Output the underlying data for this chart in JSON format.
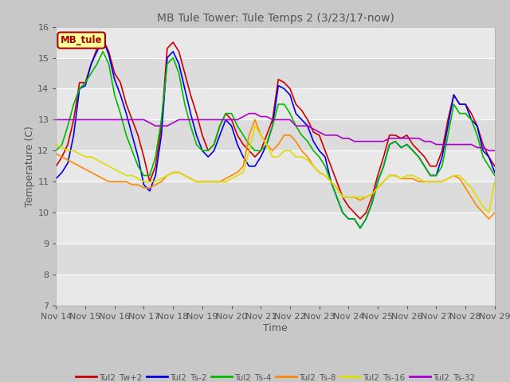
{
  "title": "MB Tule Tower: Tule Temps 2 (3/23/17-now)",
  "xlabel": "Time",
  "ylabel": "Temperature (C)",
  "ylim": [
    7.0,
    16.0
  ],
  "yticks": [
    7.0,
    8.0,
    9.0,
    10.0,
    11.0,
    12.0,
    13.0,
    14.0,
    15.0,
    16.0
  ],
  "legend_box_label": "MB_tule",
  "legend_box_color": "#ffff99",
  "legend_box_border": "#aa0000",
  "series": [
    {
      "label": "Tul2_Tw+2",
      "color": "#cc0000",
      "lw": 1.2,
      "x": [
        0,
        0.2,
        0.4,
        0.6,
        0.8,
        1.0,
        1.2,
        1.4,
        1.6,
        1.8,
        2.0,
        2.2,
        2.4,
        2.6,
        2.8,
        3.0,
        3.2,
        3.4,
        3.6,
        3.8,
        4.0,
        4.2,
        4.4,
        4.6,
        4.8,
        5.0,
        5.2,
        5.4,
        5.6,
        5.8,
        6.0,
        6.2,
        6.4,
        6.6,
        6.8,
        7.0,
        7.2,
        7.4,
        7.6,
        7.8,
        8.0,
        8.2,
        8.4,
        8.6,
        8.8,
        9.0,
        9.2,
        9.4,
        9.6,
        9.8,
        10.0,
        10.2,
        10.4,
        10.6,
        10.8,
        11.0,
        11.2,
        11.4,
        11.6,
        11.8,
        12.0,
        12.2,
        12.4,
        12.6,
        12.8,
        13.0,
        13.2,
        13.4,
        13.6,
        13.8,
        14.0,
        14.2,
        14.4,
        14.6,
        14.8,
        15.0
      ],
      "y": [
        11.5,
        11.8,
        12.2,
        13.0,
        14.2,
        14.2,
        14.8,
        15.3,
        15.6,
        15.2,
        14.5,
        14.2,
        13.5,
        13.0,
        12.5,
        11.8,
        11.0,
        11.5,
        12.8,
        15.3,
        15.5,
        15.2,
        14.5,
        13.8,
        13.2,
        12.5,
        12.0,
        12.2,
        12.8,
        13.2,
        13.0,
        12.5,
        12.2,
        12.0,
        11.8,
        12.0,
        12.5,
        13.0,
        14.3,
        14.2,
        14.0,
        13.5,
        13.3,
        13.0,
        12.6,
        12.5,
        12.0,
        11.5,
        11.0,
        10.5,
        10.2,
        10.0,
        9.8,
        10.0,
        10.5,
        11.2,
        11.8,
        12.5,
        12.5,
        12.4,
        12.5,
        12.2,
        12.0,
        11.8,
        11.5,
        11.5,
        12.0,
        13.0,
        13.8,
        13.5,
        13.5,
        13.2,
        12.8,
        12.2,
        11.8,
        11.5
      ]
    },
    {
      "label": "Tul2_Ts-2",
      "color": "#0000ee",
      "lw": 1.2,
      "x": [
        0,
        0.2,
        0.4,
        0.6,
        0.8,
        1.0,
        1.2,
        1.4,
        1.6,
        1.8,
        2.0,
        2.2,
        2.4,
        2.6,
        2.8,
        3.0,
        3.2,
        3.4,
        3.6,
        3.8,
        4.0,
        4.2,
        4.4,
        4.6,
        4.8,
        5.0,
        5.2,
        5.4,
        5.6,
        5.8,
        6.0,
        6.2,
        6.4,
        6.6,
        6.8,
        7.0,
        7.2,
        7.4,
        7.6,
        7.8,
        8.0,
        8.2,
        8.4,
        8.6,
        8.8,
        9.0,
        9.2,
        9.4,
        9.6,
        9.8,
        10.0,
        10.2,
        10.4,
        10.6,
        10.8,
        11.0,
        11.2,
        11.4,
        11.6,
        11.8,
        12.0,
        12.2,
        12.4,
        12.6,
        12.8,
        13.0,
        13.2,
        13.4,
        13.6,
        13.8,
        14.0,
        14.2,
        14.4,
        14.6,
        14.8,
        15.0
      ],
      "y": [
        11.1,
        11.3,
        11.6,
        12.5,
        14.0,
        14.1,
        14.8,
        15.2,
        15.6,
        15.1,
        14.3,
        13.8,
        13.2,
        12.5,
        11.8,
        10.9,
        10.7,
        11.2,
        12.5,
        15.0,
        15.2,
        14.8,
        14.0,
        13.2,
        12.5,
        12.0,
        11.8,
        12.0,
        12.5,
        13.0,
        12.8,
        12.2,
        11.8,
        11.5,
        11.5,
        11.8,
        12.2,
        12.8,
        14.1,
        14.0,
        13.8,
        13.2,
        13.0,
        12.8,
        12.3,
        12.0,
        11.8,
        11.0,
        10.5,
        10.0,
        9.8,
        9.8,
        9.5,
        9.8,
        10.3,
        11.0,
        11.5,
        12.2,
        12.3,
        12.1,
        12.2,
        12.0,
        11.8,
        11.5,
        11.2,
        11.2,
        11.8,
        12.8,
        13.8,
        13.5,
        13.5,
        13.0,
        12.8,
        12.0,
        11.8,
        11.3
      ]
    },
    {
      "label": "Tul2_Ts-4",
      "color": "#00bb00",
      "lw": 1.2,
      "x": [
        0,
        0.2,
        0.4,
        0.6,
        0.8,
        1.0,
        1.2,
        1.4,
        1.6,
        1.8,
        2.0,
        2.2,
        2.4,
        2.6,
        2.8,
        3.0,
        3.2,
        3.4,
        3.6,
        3.8,
        4.0,
        4.2,
        4.4,
        4.6,
        4.8,
        5.0,
        5.2,
        5.4,
        5.6,
        5.8,
        6.0,
        6.2,
        6.4,
        6.6,
        6.8,
        7.0,
        7.2,
        7.4,
        7.6,
        7.8,
        8.0,
        8.2,
        8.4,
        8.6,
        8.8,
        9.0,
        9.2,
        9.4,
        9.6,
        9.8,
        10.0,
        10.2,
        10.4,
        10.6,
        10.8,
        11.0,
        11.2,
        11.4,
        11.6,
        11.8,
        12.0,
        12.2,
        12.4,
        12.6,
        12.8,
        13.0,
        13.2,
        13.4,
        13.6,
        13.8,
        14.0,
        14.2,
        14.4,
        14.6,
        14.8,
        15.0
      ],
      "y": [
        12.0,
        12.2,
        12.8,
        13.5,
        14.0,
        14.2,
        14.5,
        14.8,
        15.2,
        14.8,
        13.8,
        13.2,
        12.5,
        12.0,
        11.5,
        11.2,
        11.2,
        11.8,
        13.0,
        14.8,
        15.0,
        14.5,
        13.5,
        12.8,
        12.2,
        12.0,
        12.0,
        12.2,
        12.8,
        13.2,
        13.2,
        12.8,
        12.5,
        12.2,
        12.0,
        12.0,
        12.2,
        12.8,
        13.5,
        13.5,
        13.2,
        12.8,
        12.5,
        12.3,
        12.0,
        11.8,
        11.5,
        11.0,
        10.5,
        10.0,
        9.8,
        9.8,
        9.5,
        9.8,
        10.3,
        11.0,
        11.5,
        12.2,
        12.3,
        12.1,
        12.2,
        12.0,
        11.8,
        11.5,
        11.2,
        11.2,
        11.5,
        12.5,
        13.5,
        13.2,
        13.2,
        13.0,
        12.5,
        11.8,
        11.5,
        11.2
      ]
    },
    {
      "label": "Tul2_Ts-8",
      "color": "#ff8800",
      "lw": 1.2,
      "x": [
        0,
        0.2,
        0.4,
        0.6,
        0.8,
        1.0,
        1.2,
        1.4,
        1.6,
        1.8,
        2.0,
        2.2,
        2.4,
        2.6,
        2.8,
        3.0,
        3.2,
        3.4,
        3.6,
        3.8,
        4.0,
        4.2,
        4.4,
        4.6,
        4.8,
        5.0,
        5.2,
        5.4,
        5.6,
        5.8,
        6.0,
        6.2,
        6.4,
        6.6,
        6.8,
        7.0,
        7.2,
        7.4,
        7.6,
        7.8,
        8.0,
        8.2,
        8.4,
        8.6,
        8.8,
        9.0,
        9.2,
        9.4,
        9.6,
        9.8,
        10.0,
        10.2,
        10.4,
        10.6,
        10.8,
        11.0,
        11.2,
        11.4,
        11.6,
        11.8,
        12.0,
        12.2,
        12.4,
        12.6,
        12.8,
        13.0,
        13.2,
        13.4,
        13.6,
        13.8,
        14.0,
        14.2,
        14.4,
        14.6,
        14.8,
        15.0
      ],
      "y": [
        11.9,
        11.8,
        11.7,
        11.6,
        11.5,
        11.4,
        11.3,
        11.2,
        11.1,
        11.0,
        11.0,
        11.0,
        11.0,
        10.9,
        10.9,
        10.8,
        10.8,
        10.9,
        11.0,
        11.2,
        11.3,
        11.3,
        11.2,
        11.1,
        11.0,
        11.0,
        11.0,
        11.0,
        11.0,
        11.1,
        11.2,
        11.3,
        11.5,
        12.5,
        13.0,
        12.5,
        12.2,
        12.0,
        12.2,
        12.5,
        12.5,
        12.3,
        12.0,
        11.8,
        11.5,
        11.3,
        11.2,
        11.0,
        10.8,
        10.5,
        10.5,
        10.5,
        10.4,
        10.5,
        10.6,
        10.8,
        11.0,
        11.2,
        11.2,
        11.1,
        11.1,
        11.1,
        11.0,
        11.0,
        11.0,
        11.0,
        11.0,
        11.1,
        11.2,
        11.1,
        10.8,
        10.5,
        10.2,
        10.0,
        9.8,
        10.0
      ]
    },
    {
      "label": "Tul2_Ts-16",
      "color": "#dddd00",
      "lw": 1.2,
      "x": [
        0,
        0.2,
        0.4,
        0.6,
        0.8,
        1.0,
        1.2,
        1.4,
        1.6,
        1.8,
        2.0,
        2.2,
        2.4,
        2.6,
        2.8,
        3.0,
        3.2,
        3.4,
        3.6,
        3.8,
        4.0,
        4.2,
        4.4,
        4.6,
        4.8,
        5.0,
        5.2,
        5.4,
        5.6,
        5.8,
        6.0,
        6.2,
        6.4,
        6.6,
        6.8,
        7.0,
        7.2,
        7.4,
        7.6,
        7.8,
        8.0,
        8.2,
        8.4,
        8.6,
        8.8,
        9.0,
        9.2,
        9.4,
        9.6,
        9.8,
        10.0,
        10.2,
        10.4,
        10.6,
        10.8,
        11.0,
        11.2,
        11.4,
        11.6,
        11.8,
        12.0,
        12.2,
        12.4,
        12.6,
        12.8,
        13.0,
        13.2,
        13.4,
        13.6,
        13.8,
        14.0,
        14.2,
        14.4,
        14.6,
        14.8,
        15.0
      ],
      "y": [
        12.2,
        12.1,
        12.0,
        12.0,
        11.9,
        11.8,
        11.8,
        11.7,
        11.6,
        11.5,
        11.4,
        11.3,
        11.2,
        11.2,
        11.1,
        11.0,
        11.0,
        11.0,
        11.1,
        11.2,
        11.3,
        11.3,
        11.2,
        11.1,
        11.0,
        11.0,
        11.0,
        11.0,
        11.0,
        11.0,
        11.1,
        11.2,
        11.3,
        12.0,
        12.8,
        12.5,
        12.2,
        11.8,
        11.8,
        12.0,
        12.0,
        11.8,
        11.8,
        11.7,
        11.5,
        11.3,
        11.2,
        11.0,
        10.8,
        10.5,
        10.5,
        10.5,
        10.5,
        10.5,
        10.6,
        10.8,
        11.0,
        11.2,
        11.2,
        11.1,
        11.2,
        11.2,
        11.1,
        11.0,
        11.0,
        11.0,
        11.0,
        11.1,
        11.2,
        11.2,
        11.0,
        10.8,
        10.5,
        10.2,
        10.0,
        11.0
      ]
    },
    {
      "label": "Tul2_Ts-32",
      "color": "#aa00cc",
      "lw": 1.2,
      "x": [
        0,
        0.2,
        0.4,
        0.6,
        0.8,
        1.0,
        1.2,
        1.4,
        1.6,
        1.8,
        2.0,
        2.2,
        2.4,
        2.6,
        2.8,
        3.0,
        3.2,
        3.4,
        3.6,
        3.8,
        4.0,
        4.2,
        4.4,
        4.6,
        4.8,
        5.0,
        5.2,
        5.4,
        5.6,
        5.8,
        6.0,
        6.2,
        6.4,
        6.6,
        6.8,
        7.0,
        7.2,
        7.4,
        7.6,
        7.8,
        8.0,
        8.2,
        8.4,
        8.6,
        8.8,
        9.0,
        9.2,
        9.4,
        9.6,
        9.8,
        10.0,
        10.2,
        10.4,
        10.6,
        10.8,
        11.0,
        11.2,
        11.4,
        11.6,
        11.8,
        12.0,
        12.2,
        12.4,
        12.6,
        12.8,
        13.0,
        13.2,
        13.4,
        13.6,
        13.8,
        14.0,
        14.2,
        14.4,
        14.6,
        14.8,
        15.0
      ],
      "y": [
        13.0,
        13.0,
        13.0,
        13.0,
        13.0,
        13.0,
        13.0,
        13.0,
        13.0,
        13.0,
        13.0,
        13.0,
        13.0,
        13.0,
        13.0,
        13.0,
        12.9,
        12.8,
        12.8,
        12.8,
        12.9,
        13.0,
        13.0,
        13.0,
        13.0,
        13.0,
        13.0,
        13.0,
        13.0,
        13.0,
        13.0,
        13.0,
        13.1,
        13.2,
        13.2,
        13.1,
        13.1,
        13.0,
        13.0,
        13.0,
        13.0,
        12.8,
        12.8,
        12.8,
        12.7,
        12.6,
        12.5,
        12.5,
        12.5,
        12.4,
        12.4,
        12.3,
        12.3,
        12.3,
        12.3,
        12.3,
        12.3,
        12.4,
        12.4,
        12.4,
        12.4,
        12.4,
        12.4,
        12.3,
        12.3,
        12.2,
        12.2,
        12.2,
        12.2,
        12.2,
        12.2,
        12.2,
        12.1,
        12.1,
        12.0,
        12.0
      ]
    }
  ],
  "xtick_labels": [
    "Nov 14",
    "Nov 15",
    "Nov 16",
    "Nov 17",
    "Nov 18",
    "Nov 19",
    "Nov 20",
    "Nov 21",
    "Nov 22",
    "Nov 23",
    "Nov 24",
    "Nov 25",
    "Nov 26",
    "Nov 27",
    "Nov 28",
    "Nov 29"
  ],
  "xtick_positions": [
    0,
    1,
    2,
    3,
    4,
    5,
    6,
    7,
    8,
    9,
    10,
    11,
    12,
    13,
    14,
    15
  ]
}
